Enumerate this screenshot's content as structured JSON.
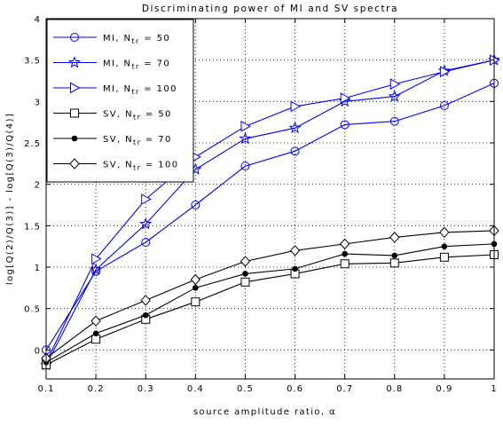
{
  "chart_data": {
    "type": "line",
    "title": "Discriminating power of MI and SV spectra",
    "xlabel": "source amplitude ratio, α",
    "ylabel": "log[Q(2)/Q(3)] - log[Q(3)/Q(4)]",
    "xlim": [
      0.1,
      1.0
    ],
    "ylim": [
      -0.35,
      4.0
    ],
    "x_ticks": [
      "0.1",
      "0.2",
      "0.3",
      "0.4",
      "0.5",
      "0.6",
      "0.7",
      "0.8",
      "0.9",
      "1"
    ],
    "y_ticks": [
      "0",
      "0.5",
      "1",
      "1.5",
      "2",
      "2.5",
      "3",
      "3.5",
      "4"
    ],
    "grid": true,
    "legend_position": "top-left",
    "x": [
      0.1,
      0.2,
      0.3,
      0.4,
      0.5,
      0.6,
      0.7,
      0.8,
      0.9,
      1.0
    ],
    "series": [
      {
        "name": "MI, N_tr = 50",
        "label_main": "MI, N",
        "label_sub": "tr",
        "label_tail": " = 50",
        "color": "#0000ff",
        "marker": "circle",
        "values": [
          0.0,
          0.95,
          1.3,
          1.75,
          2.22,
          2.4,
          2.72,
          2.76,
          2.95,
          3.22
        ]
      },
      {
        "name": "MI, N_tr = 70",
        "label_main": "MI, N",
        "label_sub": "tr",
        "label_tail": " = 70",
        "color": "#0000ff",
        "marker": "star",
        "values": [
          -0.18,
          0.97,
          1.52,
          2.18,
          2.55,
          2.68,
          3.0,
          3.06,
          3.37,
          3.5
        ]
      },
      {
        "name": "MI, N_tr = 100",
        "label_main": "MI, N",
        "label_sub": "tr",
        "label_tail": " = 100",
        "color": "#0000ff",
        "marker": "triangle-right",
        "values": [
          -0.15,
          1.1,
          1.82,
          2.33,
          2.7,
          2.94,
          3.04,
          3.21,
          3.36,
          3.5
        ]
      },
      {
        "name": "SV, N_tr = 50",
        "label_main": "SV, N",
        "label_sub": "tr",
        "label_tail": " = 50",
        "color": "#000000",
        "marker": "square",
        "values": [
          -0.18,
          0.13,
          0.37,
          0.58,
          0.82,
          0.92,
          1.04,
          1.05,
          1.12,
          1.15
        ]
      },
      {
        "name": "SV, N_tr = 70",
        "label_main": "SV, N",
        "label_sub": "tr",
        "label_tail": " = 70",
        "color": "#000000",
        "marker": "dot",
        "values": [
          -0.15,
          0.2,
          0.42,
          0.75,
          0.92,
          0.98,
          1.16,
          1.14,
          1.25,
          1.28
        ]
      },
      {
        "name": "SV, N_tr = 100",
        "label_main": "SV, N",
        "label_sub": "tr",
        "label_tail": " = 100",
        "color": "#000000",
        "marker": "diamond",
        "values": [
          -0.1,
          0.35,
          0.6,
          0.85,
          1.07,
          1.2,
          1.28,
          1.36,
          1.42,
          1.44
        ]
      }
    ]
  }
}
